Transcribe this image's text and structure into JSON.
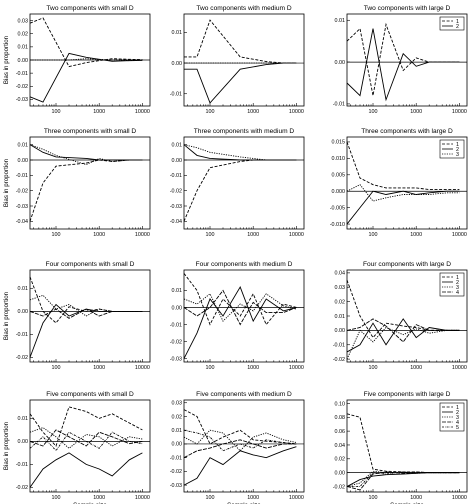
{
  "chart_data": [
    {
      "type": "line",
      "title": "Two components with small D",
      "xlabel": "",
      "ylabel": "Bias in proportion",
      "x_scale": "log",
      "xlim": [
        25,
        15000
      ],
      "ylim": [
        -0.035,
        0.035
      ],
      "xticks": [
        "100",
        "1000",
        "10000"
      ],
      "yticks": [
        "0.03",
        "0.02",
        "0.01",
        "0.00",
        "-0.01",
        "-0.02",
        "-0.03"
      ],
      "legend": [],
      "x": [
        25,
        50,
        200,
        500,
        2000,
        5000,
        10000
      ],
      "series": [
        {
          "values": [
            0.028,
            0.032,
            -0.005,
            -0.002,
            0.001,
            0.0005,
            0.0003
          ]
        },
        {
          "values": [
            -0.028,
            -0.032,
            0.005,
            0.002,
            -0.001,
            -0.0005,
            -0.0003
          ]
        },
        {
          "values": [
            0.0,
            0.0,
            0.0,
            0.001,
            0.0,
            0.0,
            0.0
          ]
        }
      ]
    },
    {
      "type": "line",
      "title": "Two components with medium D",
      "xlabel": "",
      "ylabel": "",
      "x_scale": "log",
      "xlim": [
        25,
        15000
      ],
      "ylim": [
        -0.014,
        0.016
      ],
      "xticks": [
        "100",
        "1000",
        "10000"
      ],
      "yticks": [
        "0.01",
        "0.00",
        "-0.01"
      ],
      "legend": [],
      "x": [
        25,
        50,
        100,
        500,
        2000,
        5000,
        10000
      ],
      "series": [
        {
          "values": [
            0.002,
            0.002,
            0.014,
            0.002,
            0.0005,
            0.0,
            0.0
          ]
        },
        {
          "values": [
            -0.002,
            -0.002,
            -0.013,
            -0.002,
            -0.0005,
            0.0,
            0.0
          ]
        },
        {
          "values": [
            0.0,
            0.0,
            0.0,
            0.0,
            0.0,
            0.0,
            0.0
          ]
        }
      ]
    },
    {
      "type": "line",
      "title": "Two components with large D",
      "xlabel": "",
      "ylabel": "",
      "x_scale": "log",
      "xlim": [
        25,
        15000
      ],
      "ylim": [
        -0.0105,
        0.0115
      ],
      "xticks": [
        "100",
        "1000",
        "10000"
      ],
      "yticks": [
        "0.01",
        "0.00",
        "-0.01"
      ],
      "legend": [
        "1",
        "2"
      ],
      "x": [
        25,
        50,
        100,
        200,
        500,
        1000,
        2000,
        5000,
        10000
      ],
      "series": [
        {
          "values": [
            0.005,
            0.008,
            -0.008,
            0.009,
            -0.002,
            0.001,
            0.0,
            0.0,
            0.0
          ]
        },
        {
          "values": [
            -0.005,
            -0.008,
            0.008,
            -0.009,
            0.002,
            -0.001,
            0.0,
            0.0,
            0.0
          ]
        }
      ]
    },
    {
      "type": "line",
      "title": "Three components with small D",
      "xlabel": "",
      "ylabel": "Bias in proportion",
      "x_scale": "log",
      "xlim": [
        25,
        15000
      ],
      "ylim": [
        -0.045,
        0.015
      ],
      "xticks": [
        "100",
        "1000",
        "10000"
      ],
      "yticks": [
        "0.01",
        "0.00",
        "-0.01",
        "-0.02",
        "-0.03",
        "-0.04"
      ],
      "legend": [],
      "x": [
        25,
        50,
        100,
        500,
        1000,
        2000,
        5000,
        10000
      ],
      "series": [
        {
          "values": [
            -0.04,
            -0.015,
            -0.004,
            -0.002,
            0.0,
            -0.001,
            0.0,
            0.0
          ]
        },
        {
          "values": [
            0.01,
            0.005,
            0.002,
            0.001,
            0.0,
            0.0,
            0.0,
            0.0
          ]
        },
        {
          "values": [
            0.01,
            0.007,
            0.003,
            -0.003,
            0.001,
            -0.001,
            0.0,
            0.0
          ]
        }
      ]
    },
    {
      "type": "line",
      "title": "Three components with medium D",
      "xlabel": "",
      "ylabel": "",
      "x_scale": "log",
      "xlim": [
        25,
        15000
      ],
      "ylim": [
        -0.045,
        0.015
      ],
      "xticks": [
        "100",
        "1000",
        "10000"
      ],
      "yticks": [
        "0.01",
        "0.00",
        "-0.01",
        "-0.02",
        "-0.03",
        "-0.04"
      ],
      "legend": [],
      "x": [
        25,
        50,
        100,
        500,
        1000,
        2000,
        5000,
        10000
      ],
      "series": [
        {
          "values": [
            -0.04,
            -0.02,
            -0.005,
            -0.001,
            0.0,
            0.0,
            0.0,
            0.0
          ]
        },
        {
          "values": [
            0.01,
            0.003,
            0.001,
            0.0,
            0.0,
            0.0,
            0.0,
            0.0
          ]
        },
        {
          "values": [
            0.01,
            0.008,
            0.005,
            0.002,
            0.001,
            0.0,
            0.0,
            0.0
          ]
        }
      ]
    },
    {
      "type": "line",
      "title": "Three components with large D",
      "xlabel": "",
      "ylabel": "",
      "x_scale": "log",
      "xlim": [
        25,
        15000
      ],
      "ylim": [
        -0.0115,
        0.0165
      ],
      "xticks": [
        "100",
        "1000",
        "10000"
      ],
      "yticks": [
        "0.015",
        "0.010",
        "0.005",
        "0.000",
        "-0.005",
        "-0.010"
      ],
      "legend": [
        "1",
        "2",
        "3"
      ],
      "x": [
        25,
        50,
        100,
        200,
        500,
        1000,
        2000,
        5000,
        10000
      ],
      "series": [
        {
          "values": [
            0.015,
            0.004,
            0.002,
            0.001,
            0.001,
            0.001,
            0.0005,
            0.0005,
            0.0005
          ]
        },
        {
          "values": [
            -0.01,
            -0.005,
            0.0,
            -0.001,
            0.0,
            -0.001,
            -0.0005,
            0.0,
            0.0
          ]
        },
        {
          "values": [
            0.0,
            0.002,
            -0.003,
            -0.002,
            -0.001,
            -0.001,
            -0.001,
            -0.0005,
            -0.0005
          ]
        }
      ]
    },
    {
      "type": "line",
      "title": "Four components with small D",
      "xlabel": "",
      "ylabel": "Bias in proportion",
      "x_scale": "log",
      "xlim": [
        25,
        15000
      ],
      "ylim": [
        -0.022,
        0.018
      ],
      "xticks": [
        "100",
        "1000",
        "10000"
      ],
      "yticks": [
        "0.01",
        "0.00",
        "-0.01",
        "-0.02"
      ],
      "legend": [],
      "x": [
        25,
        50,
        100,
        200,
        500,
        1000,
        2000,
        5000,
        10000
      ],
      "series": [
        {
          "values": [
            0.015,
            0.0,
            -0.005,
            0.002,
            0.0,
            0.001,
            0.0,
            0.0,
            0.0
          ]
        },
        {
          "values": [
            -0.02,
            -0.005,
            0.003,
            -0.002,
            0.001,
            0.0,
            0.0,
            0.0,
            0.0
          ]
        },
        {
          "values": [
            0.005,
            0.007,
            0.001,
            0.003,
            -0.002,
            0.001,
            0.0,
            0.0,
            0.0
          ]
        },
        {
          "values": [
            0.0,
            -0.002,
            0.001,
            -0.003,
            0.001,
            -0.002,
            0.0,
            0.0,
            0.0
          ]
        }
      ]
    },
    {
      "type": "line",
      "title": "Four components with medium D",
      "xlabel": "",
      "ylabel": "",
      "x_scale": "log",
      "xlim": [
        25,
        15000
      ],
      "ylim": [
        -0.032,
        0.022
      ],
      "xticks": [
        "100",
        "1000",
        "10000"
      ],
      "yticks": [
        "0.01",
        "0.00",
        "-0.01",
        "-0.02",
        "-0.03"
      ],
      "legend": [],
      "x": [
        25,
        50,
        100,
        200,
        500,
        1000,
        2000,
        5000,
        10000
      ],
      "series": [
        {
          "values": [
            0.02,
            0.01,
            -0.01,
            0.005,
            -0.005,
            0.008,
            -0.01,
            0.002,
            0.0
          ]
        },
        {
          "values": [
            -0.03,
            -0.015,
            0.005,
            -0.005,
            0.012,
            -0.008,
            0.005,
            -0.002,
            0.0
          ]
        },
        {
          "values": [
            0.005,
            0.002,
            0.008,
            -0.008,
            0.002,
            -0.002,
            0.008,
            0.001,
            -0.001
          ]
        },
        {
          "values": [
            0.0,
            -0.005,
            0.0,
            0.01,
            -0.01,
            0.003,
            -0.003,
            -0.003,
            0.0
          ]
        }
      ]
    },
    {
      "type": "line",
      "title": "Four components with large D",
      "xlabel": "",
      "ylabel": "",
      "x_scale": "log",
      "xlim": [
        25,
        15000
      ],
      "ylim": [
        -0.022,
        0.042
      ],
      "xticks": [
        "100",
        "1000",
        "10000"
      ],
      "yticks": [
        "0.04",
        "0.03",
        "0.02",
        "0.01",
        "0.00",
        "-0.01",
        "-0.02"
      ],
      "legend": [
        "1",
        "2",
        "3",
        "4"
      ],
      "x": [
        25,
        50,
        100,
        200,
        500,
        1000,
        2000,
        5000,
        10000
      ],
      "series": [
        {
          "values": [
            0.035,
            0.01,
            -0.005,
            0.005,
            0.003,
            0.002,
            0.0,
            0.0,
            0.0
          ]
        },
        {
          "values": [
            -0.015,
            -0.01,
            0.005,
            -0.01,
            0.008,
            -0.005,
            0.002,
            0.0,
            0.0
          ]
        },
        {
          "values": [
            -0.02,
            0.0,
            -0.008,
            0.002,
            -0.003,
            0.001,
            -0.002,
            0.0,
            0.0
          ]
        },
        {
          "values": [
            0.0,
            0.002,
            0.008,
            0.003,
            -0.008,
            0.004,
            0.0,
            0.0,
            0.0
          ]
        }
      ]
    },
    {
      "type": "line",
      "title": "Five components with small D",
      "xlabel": "Sample size",
      "ylabel": "Bias in proportion",
      "x_scale": "log",
      "xlim": [
        25,
        15000
      ],
      "ylim": [
        -0.022,
        0.018
      ],
      "xticks": [
        "100",
        "1000",
        "10000"
      ],
      "yticks": [
        "0.01",
        "0.00",
        "-0.01",
        "-0.02"
      ],
      "legend": [],
      "x": [
        25,
        50,
        100,
        200,
        500,
        1000,
        2000,
        5000,
        10000
      ],
      "series": [
        {
          "values": [
            0.012,
            0.004,
            -0.002,
            0.015,
            0.013,
            0.01,
            0.012,
            0.008,
            0.005
          ]
        },
        {
          "values": [
            -0.02,
            -0.012,
            -0.008,
            -0.005,
            -0.01,
            -0.012,
            -0.015,
            -0.008,
            -0.005
          ]
        },
        {
          "values": [
            0.004,
            0.006,
            0.002,
            -0.003,
            0.003,
            0.002,
            -0.002,
            0.002,
            0.001
          ]
        },
        {
          "values": [
            0.0,
            -0.002,
            0.005,
            0.002,
            -0.002,
            0.004,
            0.002,
            -0.001,
            0.0
          ]
        },
        {
          "values": [
            -0.003,
            0.002,
            -0.004,
            0.004,
            0.0,
            -0.003,
            0.004,
            0.0,
            -0.001
          ]
        }
      ]
    },
    {
      "type": "line",
      "title": "Five components with medium D",
      "xlabel": "Sample size",
      "ylabel": "",
      "x_scale": "log",
      "xlim": [
        25,
        15000
      ],
      "ylim": [
        -0.035,
        0.032
      ],
      "xticks": [
        "100",
        "1000",
        "10000"
      ],
      "yticks": [
        "0.03",
        "0.02",
        "0.01",
        "0.00",
        "-0.01",
        "-0.02",
        "-0.03"
      ],
      "legend": [],
      "x": [
        25,
        50,
        100,
        200,
        500,
        1000,
        2000,
        5000,
        10000
      ],
      "series": [
        {
          "values": [
            0.025,
            0.02,
            0.0,
            0.005,
            0.01,
            0.003,
            0.002,
            0.001,
            0.0
          ]
        },
        {
          "values": [
            -0.03,
            -0.025,
            -0.01,
            -0.015,
            -0.005,
            -0.008,
            -0.01,
            -0.005,
            -0.002
          ]
        },
        {
          "values": [
            0.005,
            0.0,
            0.01,
            0.008,
            -0.005,
            0.005,
            0.008,
            0.003,
            0.001
          ]
        },
        {
          "values": [
            -0.01,
            -0.005,
            -0.003,
            0.0,
            0.003,
            0.0,
            -0.003,
            0.0,
            0.0
          ]
        },
        {
          "values": [
            0.01,
            0.008,
            0.005,
            -0.005,
            0.0,
            -0.003,
            0.003,
            0.001,
            0.0
          ]
        }
      ]
    },
    {
      "type": "line",
      "title": "Five components with large D",
      "xlabel": "Sample size",
      "ylabel": "",
      "x_scale": "log",
      "xlim": [
        25,
        15000
      ],
      "ylim": [
        -0.028,
        0.105
      ],
      "xticks": [
        "100",
        "1000",
        "10000"
      ],
      "yticks": [
        "0.10",
        "0.08",
        "0.06",
        "0.04",
        "0.02",
        "0.00",
        "-0.02"
      ],
      "legend": [
        "1",
        "2",
        "3",
        "4",
        "5"
      ],
      "x": [
        25,
        50,
        100,
        200,
        500,
        1000,
        2000,
        5000,
        10000
      ],
      "series": [
        {
          "values": [
            0.085,
            0.08,
            0.005,
            0.002,
            0.001,
            0.001,
            0.0,
            0.0,
            0.0
          ]
        },
        {
          "values": [
            -0.02,
            -0.01,
            -0.005,
            -0.003,
            -0.002,
            -0.001,
            0.0,
            0.0,
            0.0
          ]
        },
        {
          "values": [
            -0.02,
            -0.015,
            0.002,
            0.0,
            0.0,
            0.001,
            0.0,
            0.0,
            0.0
          ]
        },
        {
          "values": [
            -0.02,
            -0.025,
            -0.002,
            0.001,
            -0.001,
            0.0,
            0.0,
            0.0,
            0.0
          ]
        },
        {
          "values": [
            -0.02,
            -0.02,
            0.0,
            -0.002,
            0.001,
            -0.001,
            0.0,
            0.0,
            0.0
          ]
        }
      ]
    }
  ]
}
